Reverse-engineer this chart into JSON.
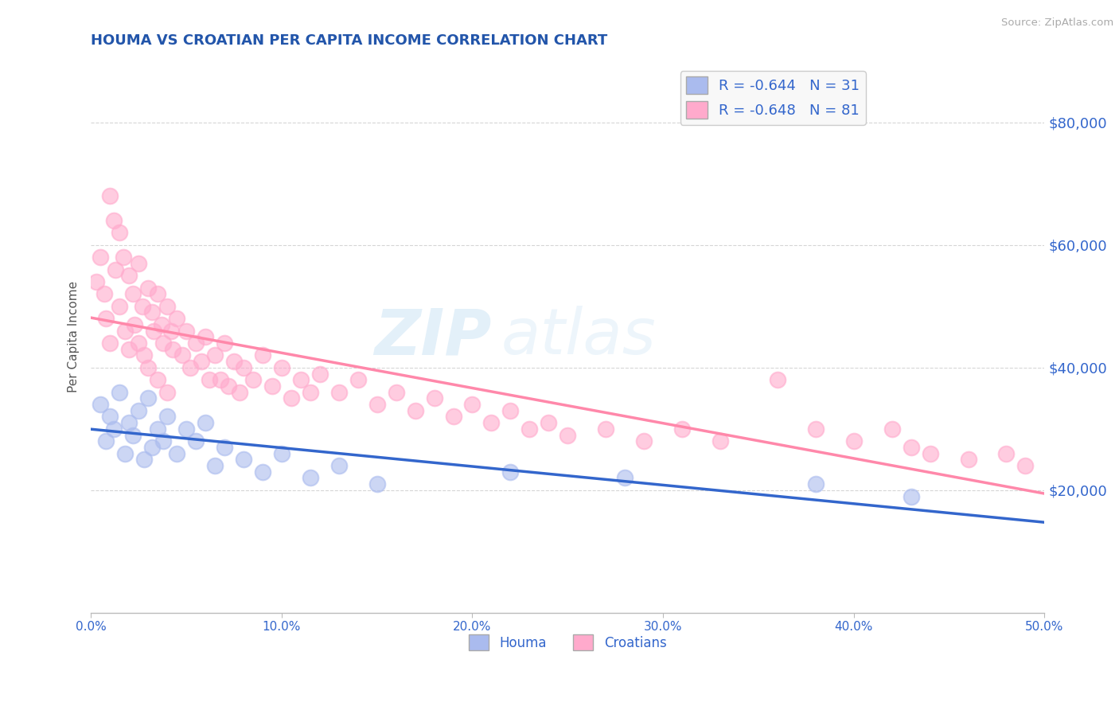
{
  "title": "HOUMA VS CROATIAN PER CAPITA INCOME CORRELATION CHART",
  "source_text": "Source: ZipAtlas.com",
  "ylabel": "Per Capita Income",
  "title_color": "#2255aa",
  "axis_label_color": "#555555",
  "tick_color": "#3366cc",
  "background_color": "#ffffff",
  "grid_color": "#cccccc",
  "xlim": [
    0.0,
    0.5
  ],
  "ylim": [
    0,
    90000
  ],
  "yticks": [
    20000,
    40000,
    60000,
    80000
  ],
  "ytick_labels": [
    "$20,000",
    "$40,000",
    "$60,000",
    "$80,000"
  ],
  "xticks": [
    0.0,
    0.1,
    0.2,
    0.3,
    0.4,
    0.5
  ],
  "xtick_labels": [
    "0.0%",
    "10.0%",
    "20.0%",
    "30.0%",
    "40.0%",
    "50.0%"
  ],
  "houma_color": "#aabbee",
  "croatian_color": "#ffaacc",
  "houma_line_color": "#3366cc",
  "croatian_line_color": "#ff88aa",
  "houma_r": -0.644,
  "houma_n": 31,
  "croatian_r": -0.648,
  "croatian_n": 81,
  "legend_label_houma": "Houma",
  "legend_label_croatian": "Croatians",
  "watermark_zip": "ZIP",
  "watermark_atlas": "atlas",
  "houma_x": [
    0.005,
    0.008,
    0.01,
    0.012,
    0.015,
    0.018,
    0.02,
    0.022,
    0.025,
    0.028,
    0.03,
    0.032,
    0.035,
    0.038,
    0.04,
    0.045,
    0.05,
    0.055,
    0.06,
    0.065,
    0.07,
    0.08,
    0.09,
    0.1,
    0.115,
    0.13,
    0.15,
    0.22,
    0.28,
    0.38,
    0.43
  ],
  "houma_y": [
    34000,
    28000,
    32000,
    30000,
    36000,
    26000,
    31000,
    29000,
    33000,
    25000,
    35000,
    27000,
    30000,
    28000,
    32000,
    26000,
    30000,
    28000,
    31000,
    24000,
    27000,
    25000,
    23000,
    26000,
    22000,
    24000,
    21000,
    23000,
    22000,
    21000,
    19000
  ],
  "croatian_x": [
    0.003,
    0.005,
    0.007,
    0.008,
    0.01,
    0.01,
    0.012,
    0.013,
    0.015,
    0.015,
    0.017,
    0.018,
    0.02,
    0.02,
    0.022,
    0.023,
    0.025,
    0.025,
    0.027,
    0.028,
    0.03,
    0.03,
    0.032,
    0.033,
    0.035,
    0.035,
    0.037,
    0.038,
    0.04,
    0.04,
    0.042,
    0.043,
    0.045,
    0.048,
    0.05,
    0.052,
    0.055,
    0.058,
    0.06,
    0.062,
    0.065,
    0.068,
    0.07,
    0.072,
    0.075,
    0.078,
    0.08,
    0.085,
    0.09,
    0.095,
    0.1,
    0.105,
    0.11,
    0.115,
    0.12,
    0.13,
    0.14,
    0.15,
    0.16,
    0.17,
    0.18,
    0.19,
    0.2,
    0.21,
    0.22,
    0.23,
    0.24,
    0.25,
    0.27,
    0.29,
    0.31,
    0.33,
    0.36,
    0.38,
    0.4,
    0.42,
    0.43,
    0.44,
    0.46,
    0.48,
    0.49
  ],
  "croatian_y": [
    54000,
    58000,
    52000,
    48000,
    68000,
    44000,
    64000,
    56000,
    50000,
    62000,
    58000,
    46000,
    55000,
    43000,
    52000,
    47000,
    57000,
    44000,
    50000,
    42000,
    53000,
    40000,
    49000,
    46000,
    52000,
    38000,
    47000,
    44000,
    50000,
    36000,
    46000,
    43000,
    48000,
    42000,
    46000,
    40000,
    44000,
    41000,
    45000,
    38000,
    42000,
    38000,
    44000,
    37000,
    41000,
    36000,
    40000,
    38000,
    42000,
    37000,
    40000,
    35000,
    38000,
    36000,
    39000,
    36000,
    38000,
    34000,
    36000,
    33000,
    35000,
    32000,
    34000,
    31000,
    33000,
    30000,
    31000,
    29000,
    30000,
    28000,
    30000,
    28000,
    38000,
    30000,
    28000,
    30000,
    27000,
    26000,
    25000,
    26000,
    24000
  ]
}
